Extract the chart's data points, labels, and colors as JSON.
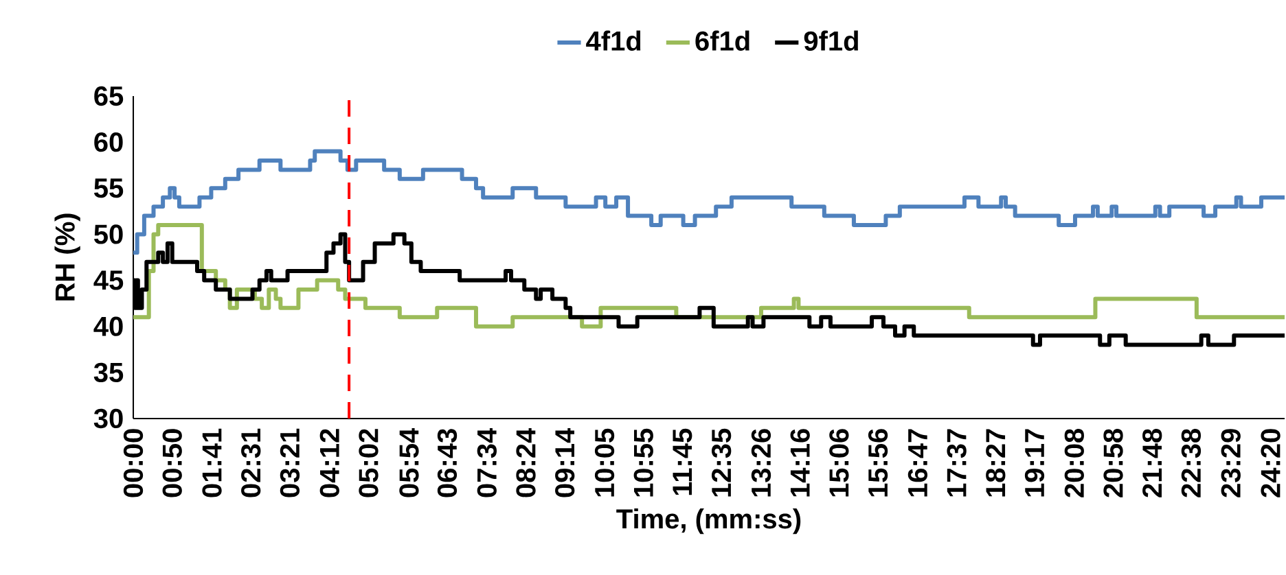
{
  "chart_data": {
    "type": "step",
    "xlabel": "Time, (mm:ss)",
    "ylabel": "RH (%)",
    "xlim": [
      0,
      1478
    ],
    "ylim": [
      30,
      65
    ],
    "yticks": [
      30,
      35,
      40,
      45,
      50,
      55,
      60,
      65
    ],
    "xticks": [
      {
        "value": 0,
        "label": "00:00"
      },
      {
        "value": 50,
        "label": "00:50"
      },
      {
        "value": 101,
        "label": "01:41"
      },
      {
        "value": 151,
        "label": "02:31"
      },
      {
        "value": 201,
        "label": "03:21"
      },
      {
        "value": 252,
        "label": "04:12"
      },
      {
        "value": 302,
        "label": "05:02"
      },
      {
        "value": 354,
        "label": "05:54"
      },
      {
        "value": 403,
        "label": "06:43"
      },
      {
        "value": 454,
        "label": "07:34"
      },
      {
        "value": 504,
        "label": "08:24"
      },
      {
        "value": 554,
        "label": "09:14"
      },
      {
        "value": 605,
        "label": "10:05"
      },
      {
        "value": 655,
        "label": "10:55"
      },
      {
        "value": 705,
        "label": "11:45"
      },
      {
        "value": 755,
        "label": "12:35"
      },
      {
        "value": 806,
        "label": "13:26"
      },
      {
        "value": 856,
        "label": "14:16"
      },
      {
        "value": 906,
        "label": "15:06"
      },
      {
        "value": 956,
        "label": "15:56"
      },
      {
        "value": 1007,
        "label": "16:47"
      },
      {
        "value": 1057,
        "label": "17:37"
      },
      {
        "value": 1107,
        "label": "18:27"
      },
      {
        "value": 1157,
        "label": "19:17"
      },
      {
        "value": 1208,
        "label": "20:08"
      },
      {
        "value": 1258,
        "label": "20:58"
      },
      {
        "value": 1308,
        "label": "21:48"
      },
      {
        "value": 1358,
        "label": "22:38"
      },
      {
        "value": 1409,
        "label": "23:29"
      },
      {
        "value": 1460,
        "label": "24:20"
      }
    ],
    "legend": "top",
    "ref_lines": [
      {
        "axis": "x",
        "value": 277,
        "color": "#ff0000",
        "line_style": "dashed"
      }
    ],
    "series": [
      {
        "name": "4f1d",
        "color": "#4f81bd",
        "x": [
          0,
          5,
          14,
          26,
          38,
          47,
          53,
          59,
          85,
          100,
          118,
          135,
          162,
          189,
          227,
          233,
          266,
          275,
          286,
          322,
          342,
          372,
          422,
          440,
          449,
          487,
          517,
          555,
          594,
          606,
          620,
          635,
          665,
          677,
          706,
          721,
          748,
          768,
          845,
          887,
          925,
          966,
          984,
          1067,
          1085,
          1114,
          1120,
          1132,
          1188,
          1209,
          1232,
          1238,
          1256,
          1262,
          1312,
          1318,
          1330,
          1374,
          1389,
          1416,
          1422,
          1448,
          1478
        ],
        "values": [
          48,
          50,
          52,
          53,
          54,
          55,
          54,
          53,
          54,
          55,
          56,
          57,
          58,
          57,
          58,
          59,
          58,
          57,
          58,
          57,
          56,
          57,
          56,
          55,
          54,
          55,
          54,
          53,
          54,
          53,
          54,
          52,
          51,
          52,
          51,
          52,
          53,
          54,
          53,
          52,
          51,
          52,
          53,
          54,
          53,
          54,
          53,
          52,
          51,
          52,
          53,
          52,
          53,
          52,
          53,
          52,
          53,
          52,
          53,
          54,
          53,
          54,
          54
        ]
      },
      {
        "name": "6f1d",
        "color": "#9bbb59",
        "x": [
          0,
          11,
          20,
          26,
          32,
          85,
          88,
          106,
          118,
          124,
          133,
          156,
          165,
          174,
          183,
          189,
          212,
          236,
          263,
          272,
          298,
          342,
          390,
          440,
          487,
          576,
          600,
          697,
          806,
          848,
          854,
          1073,
          1235,
          1365,
          1478
        ],
        "values": [
          41,
          41,
          46,
          50,
          51,
          51,
          46,
          45,
          44,
          42,
          44,
          43,
          42,
          44,
          43,
          42,
          44,
          45,
          44,
          43,
          42,
          41,
          42,
          40,
          41,
          40,
          42,
          41,
          42,
          43,
          42,
          41,
          43,
          41,
          41
        ]
      },
      {
        "name": "9f1d",
        "color": "#000000",
        "x": [
          0,
          2,
          4,
          6,
          11,
          17,
          32,
          38,
          44,
          50,
          82,
          91,
          106,
          124,
          153,
          162,
          171,
          177,
          198,
          248,
          257,
          266,
          272,
          277,
          295,
          310,
          334,
          348,
          357,
          369,
          419,
          478,
          485,
          502,
          517,
          523,
          538,
          555,
          561,
          623,
          647,
          706,
          727,
          745,
          789,
          795,
          809,
          868,
          883,
          895,
          948,
          963,
          978,
          990,
          1002,
          1155,
          1164,
          1241,
          1253,
          1274,
          1371,
          1380,
          1413,
          1478
        ],
        "values": [
          45,
          42,
          45,
          42,
          44,
          47,
          48,
          47,
          49,
          47,
          46,
          45,
          44,
          43,
          44,
          45,
          46,
          45,
          46,
          48,
          49,
          50,
          47,
          45,
          47,
          49,
          50,
          49,
          47,
          46,
          45,
          46,
          45,
          44,
          43,
          44,
          43,
          42,
          41,
          40,
          41,
          41,
          42,
          40,
          41,
          40,
          41,
          40,
          41,
          40,
          41,
          40,
          39,
          40,
          39,
          38,
          39,
          38,
          39,
          38,
          39,
          38,
          39,
          39
        ]
      }
    ]
  }
}
